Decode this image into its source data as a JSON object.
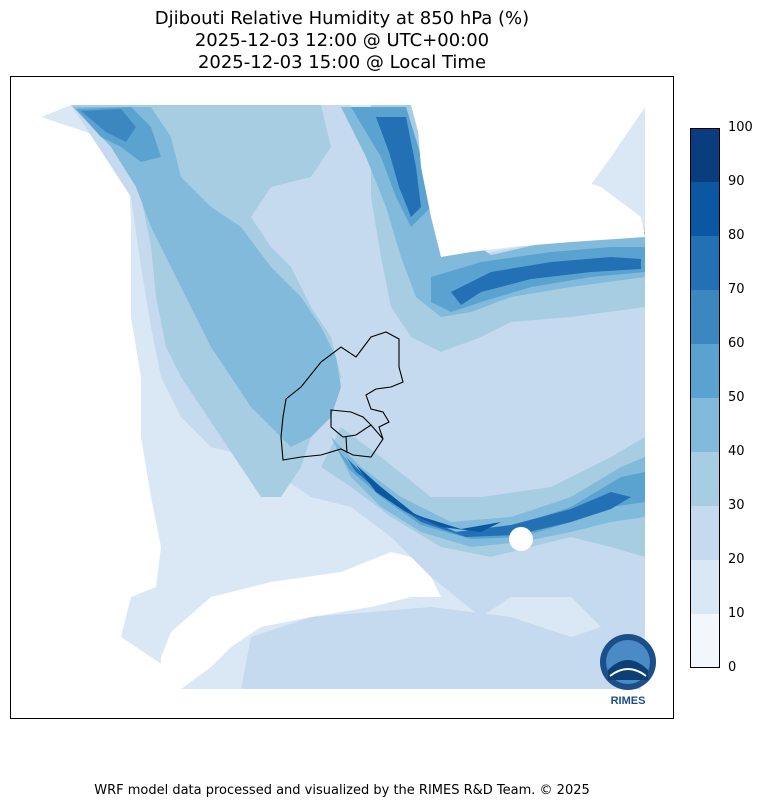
{
  "title": {
    "line1": "Djibouti Relative Humidity at 850 hPa (%)",
    "line2": "2025-12-03 12:00 @ UTC+00:00",
    "line3": "2025-12-03 15:00 @ Local Time"
  },
  "colorbar": {
    "ticks": [
      "0",
      "10",
      "20",
      "30",
      "40",
      "50",
      "60",
      "70",
      "80",
      "90",
      "100"
    ],
    "colors": [
      "#f2f7fd",
      "#dae8f6",
      "#c6daef",
      "#a7cde3",
      "#82badc",
      "#5aa2d0",
      "#3d87c1",
      "#2370b4",
      "#0c57a2",
      "#0a3d7e"
    ]
  },
  "logo": {
    "text": "RIMES"
  },
  "credit": "WRF model data processed and visualized by the RIMES R&D Team. © 2025"
}
